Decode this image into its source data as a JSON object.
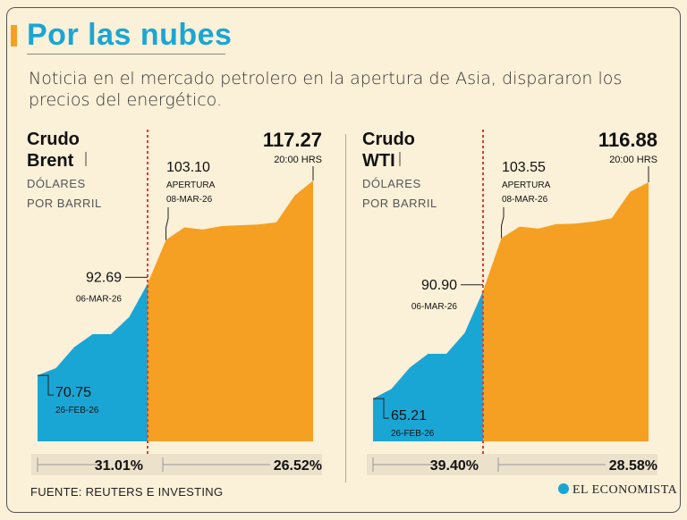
{
  "header": {
    "title": "Por las nubes",
    "subtitle": "Noticia en el mercado petrolero en la apertura de Asia, dispararon los precios del energético."
  },
  "footer": {
    "source": "FUENTE: REUTERS E INVESTING",
    "logo": "EL ECONOMISTA"
  },
  "colors": {
    "blue": "#1aa6d5",
    "orange": "#f5a023",
    "redline": "#e63a2e"
  },
  "chart_data": [
    {
      "type": "area",
      "name_line1": "Crudo",
      "name_line2": "Brent",
      "unit_line1": "DÓLARES",
      "unit_line2": "POR BARRIL",
      "ylim": [
        55,
        122
      ],
      "before": [
        70.75,
        72.5,
        77.5,
        80.6,
        80.6,
        84.7,
        92.69
      ],
      "after": [
        92.69,
        103.1,
        106.1,
        105.6,
        106.4,
        106.6,
        106.8,
        107.3,
        113.7,
        117.27
      ],
      "start": {
        "value": "70.75",
        "date": "26-FEB-26"
      },
      "mid": {
        "value": "92.69",
        "date": "06-MAR-26"
      },
      "open": {
        "value": "103.10",
        "label": "APERTURA",
        "date": "08-MAR-26"
      },
      "end": {
        "value": "117.27",
        "time": "20:00 HRS"
      },
      "pct_before": "31.01%",
      "pct_after": "26.52%"
    },
    {
      "type": "area",
      "name_line1": "Crudo",
      "name_line2": "WTI",
      "unit_line1": "DÓLARES",
      "unit_line2": "POR BARRIL",
      "ylim": [
        55,
        122
      ],
      "before": [
        65.21,
        67.5,
        72.6,
        75.9,
        75.9,
        80.9,
        90.9
      ],
      "after": [
        90.9,
        103.55,
        106.3,
        105.8,
        106.9,
        107.0,
        107.5,
        108.3,
        114.6,
        116.88
      ],
      "start": {
        "value": "65.21",
        "date": "26-FEB-26"
      },
      "mid": {
        "value": "90.90",
        "date": "06-MAR-26"
      },
      "open": {
        "value": "103.55",
        "label": "APERTURA",
        "date": "08-MAR-26"
      },
      "end": {
        "value": "116.88",
        "time": "20:00 HRS"
      },
      "pct_before": "39.40%",
      "pct_after": "28.58%"
    }
  ]
}
